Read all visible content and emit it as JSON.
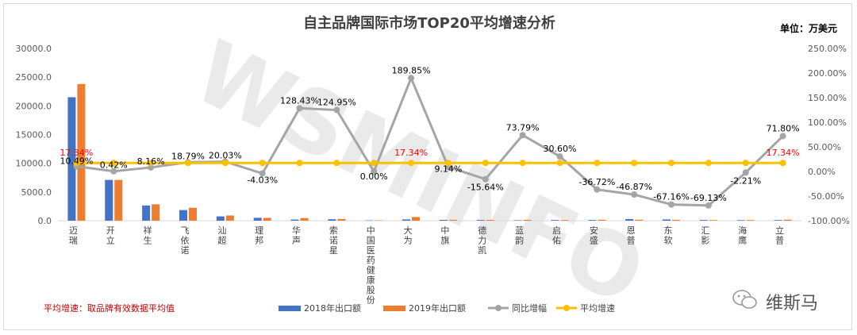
{
  "chart_data": {
    "type": "bar",
    "title": "自主品牌国际市场TOP20平均增速分析",
    "unit_label": "单位：万美元",
    "footnote": "平均增速：取品牌有效数据平均值",
    "watermark": "WSMINFO",
    "wechat_label": "维斯马",
    "categories": [
      "迈瑞",
      "开立",
      "祥生",
      "飞依诺",
      "汕超",
      "理邦",
      "华声",
      "索诺星",
      "中国医药健康股份",
      "大为",
      "中旗",
      "德力凯",
      "蓝韵",
      "启佑",
      "安盛",
      "恩普",
      "东软",
      "汇影",
      "海鹰",
      "立普"
    ],
    "series": [
      {
        "name": "2018年出口额",
        "type": "bar",
        "axis": "left",
        "color": "#4472c4",
        "values": [
          21500,
          7100,
          2650,
          1850,
          750,
          500,
          200,
          250,
          50,
          220,
          140,
          120,
          80,
          120,
          120,
          280,
          220,
          120,
          100,
          110
        ]
      },
      {
        "name": "2019年出口额",
        "type": "bar",
        "axis": "left",
        "color": "#ed7d31",
        "values": [
          23800,
          7100,
          2850,
          2250,
          900,
          480,
          460,
          300,
          60,
          640,
          150,
          140,
          150,
          120,
          170,
          170,
          150,
          110,
          110,
          180
        ]
      },
      {
        "name": "同比增幅",
        "type": "line",
        "axis": "right",
        "color": "#a5a5a5",
        "values": [
          10.49,
          0.42,
          8.16,
          18.79,
          20.03,
          -4.03,
          128.43,
          124.95,
          0.0,
          189.85,
          9.14,
          -15.64,
          73.79,
          30.6,
          -36.72,
          -46.87,
          -67.16,
          -69.13,
          -2.21,
          71.8
        ],
        "labels": [
          "10.49%",
          "0.42%",
          "8.16%",
          "18.79%",
          "20.03%",
          "-4.03%",
          "128.43%",
          "124.95%",
          "0.00%",
          "189.85%",
          "9.14%",
          "-15.64%",
          "73.79%",
          "30.60%",
          "-36.72%",
          "-46.87%",
          "-67.16%",
          "-69.13%",
          "-2.21%",
          "71.80%"
        ]
      },
      {
        "name": "平均增速",
        "type": "line",
        "axis": "right",
        "color": "#ffc000",
        "value": 17.34,
        "label": "17.34%"
      }
    ],
    "y_left": {
      "min": 0,
      "max": 30000,
      "ticks": [
        "0.0",
        "5000.0",
        "10000.0",
        "15000.0",
        "20000.0",
        "25000.0",
        "30000.0"
      ]
    },
    "y_right": {
      "min": -100,
      "max": 250,
      "ticks": [
        "-100.00%",
        "-50.00%",
        "0.00%",
        "50.00%",
        "100.00%",
        "150.00%",
        "200.00%",
        "250.00%"
      ]
    },
    "avg_label_positions": [
      "left",
      "middle",
      "right"
    ],
    "legend_position": "bottom",
    "grid": false
  }
}
